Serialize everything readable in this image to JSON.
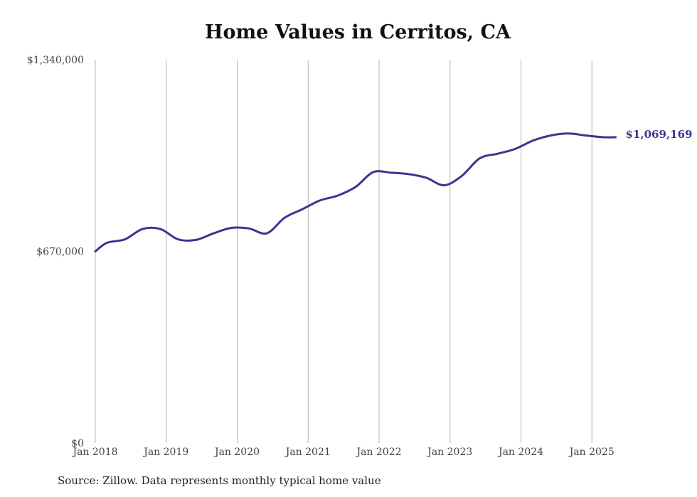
{
  "chart_data": {
    "type": "line",
    "title": "Home Values in Cerritos, CA",
    "source": "Source: Zillow. Data represents monthly typical home value",
    "ylim": [
      0,
      1340000
    ],
    "y_ticks": [
      {
        "value": 0,
        "label": "$0"
      },
      {
        "value": 670000,
        "label": "$670,000"
      },
      {
        "value": 1340000,
        "label": "$1,340,000"
      }
    ],
    "x_ticks": [
      {
        "value": "2018-01",
        "label": "Jan 2018"
      },
      {
        "value": "2019-01",
        "label": "Jan 2019"
      },
      {
        "value": "2020-01",
        "label": "Jan 2020"
      },
      {
        "value": "2021-01",
        "label": "Jan 2021"
      },
      {
        "value": "2022-01",
        "label": "Jan 2022"
      },
      {
        "value": "2023-01",
        "label": "Jan 2023"
      },
      {
        "value": "2024-01",
        "label": "Jan 2024"
      },
      {
        "value": "2025-01",
        "label": "Jan 2025"
      }
    ],
    "grid": "vertical",
    "line_color": "#3a3591",
    "end_label": "$1,069,169",
    "series": [
      {
        "x": [
          "2018-01",
          "2018-03",
          "2018-06",
          "2018-09",
          "2018-12",
          "2019-03",
          "2019-06",
          "2019-09",
          "2019-12",
          "2020-03",
          "2020-06",
          "2020-09",
          "2020-12",
          "2021-03",
          "2021-06",
          "2021-09",
          "2021-12",
          "2022-03",
          "2022-06",
          "2022-09",
          "2022-12",
          "2023-03",
          "2023-06",
          "2023-09",
          "2023-12",
          "2024-03",
          "2024-06",
          "2024-09",
          "2024-12",
          "2025-03",
          "2025-05"
        ],
        "values": [
          670000,
          700000,
          712000,
          748000,
          748000,
          712000,
          710000,
          733000,
          752000,
          750000,
          733000,
          787000,
          817000,
          848000,
          865000,
          895000,
          947000,
          945000,
          940000,
          927000,
          901000,
          934000,
          995000,
          1011000,
          1028000,
          1057000,
          1075000,
          1082000,
          1075000,
          1069000,
          1069169
        ]
      }
    ]
  }
}
